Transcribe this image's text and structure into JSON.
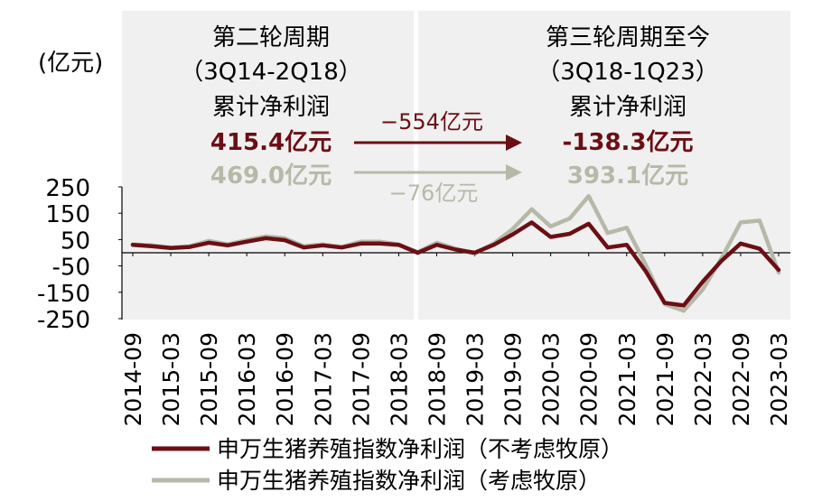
{
  "chart_data": {
    "type": "line",
    "unit_label": "(亿元)",
    "ylim": [
      -250,
      250
    ],
    "y_ticks": [
      250,
      150,
      50,
      -50,
      -150,
      -250
    ],
    "x": [
      "2014-09",
      "2014-12",
      "2015-03",
      "2015-06",
      "2015-09",
      "2015-12",
      "2016-03",
      "2016-06",
      "2016-09",
      "2016-12",
      "2017-03",
      "2017-06",
      "2017-09",
      "2017-12",
      "2018-03",
      "2018-06",
      "2018-09",
      "2018-12",
      "2019-03",
      "2019-06",
      "2019-09",
      "2019-12",
      "2020-03",
      "2020-06",
      "2020-09",
      "2020-12",
      "2021-03",
      "2021-06",
      "2021-09",
      "2021-12",
      "2022-03",
      "2022-06",
      "2022-09",
      "2022-12",
      "2023-03"
    ],
    "x_tick_labels": [
      "2014-09",
      "2015-03",
      "2015-09",
      "2016-03",
      "2016-09",
      "2017-03",
      "2017-09",
      "2018-03",
      "2018-09",
      "2019-03",
      "2019-09",
      "2020-03",
      "2020-09",
      "2021-03",
      "2021-09",
      "2022-03",
      "2022-09",
      "2023-03"
    ],
    "series": [
      {
        "name": "申万生猪养殖指数净利润（不考虑牧原）",
        "color": "#6b0f14",
        "values": [
          30,
          25,
          18,
          22,
          38,
          28,
          42,
          55,
          48,
          20,
          28,
          20,
          35,
          35,
          30,
          0,
          30,
          12,
          0,
          30,
          70,
          115,
          60,
          72,
          110,
          20,
          30,
          -70,
          -190,
          -200,
          -110,
          -30,
          35,
          15,
          -65
        ]
      },
      {
        "name": "申万生猪养殖指数净利润（考虑牧原）",
        "color": "#b8b8a8",
        "values": [
          32,
          28,
          20,
          25,
          45,
          32,
          48,
          62,
          55,
          25,
          32,
          22,
          42,
          42,
          32,
          2,
          38,
          15,
          -3,
          35,
          90,
          165,
          100,
          130,
          215,
          75,
          95,
          -45,
          -195,
          -220,
          -140,
          -20,
          115,
          122,
          -75
        ]
      }
    ],
    "periods": [
      {
        "title": "第二轮周期",
        "range": "（3Q14-2Q18）",
        "subtitle": "累计净利润",
        "value_excl": "415.4亿元",
        "value_incl": "469.0亿元"
      },
      {
        "title": "第三轮周期至今",
        "range": "（3Q18-1Q23）",
        "subtitle": "累计净利润",
        "value_excl": "-138.3亿元",
        "value_incl": "393.1亿元"
      }
    ],
    "diff_excl": "−554亿元",
    "diff_incl": "−76亿元"
  }
}
